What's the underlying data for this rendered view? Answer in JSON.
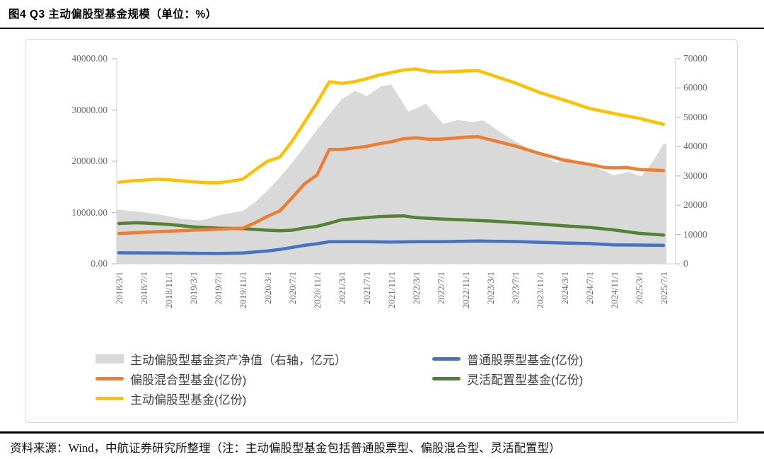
{
  "header": {
    "title": "图4  Q3 主动偏股型基金规模（单位：%）"
  },
  "footer": {
    "source": "资料来源：Wind，中航证券研究所整理（注：主动偏股型基金包括普通股票型、偏股混合型、灵活配置型）"
  },
  "chart_data": {
    "type": "combo-area-line",
    "title": "Q3 主动偏股型基金规模",
    "x_axis": {
      "labels": [
        "2018/3/1",
        "2018/7/1",
        "2018/11/1",
        "2019/3/1",
        "2019/7/1",
        "2019/11/1",
        "2020/3/1",
        "2020/7/1",
        "2020/11/1",
        "2021/3/1",
        "2021/7/1",
        "2021/11/1",
        "2022/3/1",
        "2022/7/1",
        "2022/11/1",
        "2023/3/1",
        "2023/7/1",
        "2023/11/1",
        "2024/3/1",
        "2024/7/1",
        "2024/11/1",
        "2025/3/1",
        "2025/7/1"
      ],
      "note": "series point x values are fractional indexes into labels (0 = 2018/3/1, 22 = 2025/7/1)"
    },
    "axes": {
      "left": {
        "min": 0,
        "max": 40000,
        "tick_values": [
          40000,
          30000,
          20000,
          10000,
          0
        ],
        "tick_labels": [
          "40000.00",
          "30000.00",
          "20000.00",
          "10000.00",
          "0.00"
        ]
      },
      "right": {
        "min": 0,
        "max": 70000,
        "tick_values": [
          70000,
          60000,
          50000,
          40000,
          30000,
          20000,
          10000,
          0
        ],
        "tick_labels": [
          "70000",
          "60000",
          "50000",
          "40000",
          "30000",
          "20000",
          "10000",
          "0"
        ]
      }
    },
    "grid": false,
    "series": [
      {
        "name": "主动偏股型基金资产净值（右轴，亿元）",
        "type": "area",
        "axis": "right",
        "color": "#d9d9d9",
        "points": [
          [
            0,
            18500
          ],
          [
            0.5,
            18000
          ],
          [
            1,
            17600
          ],
          [
            1.5,
            17000
          ],
          [
            2,
            16300
          ],
          [
            2.5,
            15400
          ],
          [
            3,
            15000
          ],
          [
            3.3,
            14800
          ],
          [
            3.6,
            15400
          ],
          [
            4,
            16500
          ],
          [
            4.5,
            17300
          ],
          [
            5,
            18000
          ],
          [
            5.5,
            21000
          ],
          [
            6,
            25000
          ],
          [
            6.5,
            29500
          ],
          [
            7,
            34500
          ],
          [
            7.5,
            40000
          ],
          [
            8,
            45700
          ],
          [
            8.5,
            51000
          ],
          [
            9,
            56200
          ],
          [
            9.55,
            59100
          ],
          [
            10,
            57200
          ],
          [
            10.6,
            60600
          ],
          [
            11,
            61200
          ],
          [
            11.35,
            56500
          ],
          [
            11.7,
            51900
          ],
          [
            12.4,
            54600
          ],
          [
            13.1,
            47800
          ],
          [
            13.7,
            49100
          ],
          [
            14.3,
            48300
          ],
          [
            14.7,
            49000
          ],
          [
            15,
            47400
          ],
          [
            15.4,
            45000
          ],
          [
            16,
            41800
          ],
          [
            16.7,
            38600
          ],
          [
            17.3,
            36200
          ],
          [
            17.7,
            34500
          ],
          [
            18.1,
            36200
          ],
          [
            18.6,
            34800
          ],
          [
            19,
            33600
          ],
          [
            19.5,
            32100
          ],
          [
            20,
            30200
          ],
          [
            20.6,
            31400
          ],
          [
            21.1,
            29800
          ],
          [
            21.6,
            35300
          ],
          [
            22,
            41000
          ]
        ]
      },
      {
        "name": "普通股票型基金(亿份)",
        "type": "line",
        "axis": "left",
        "color": "#4472c4",
        "points": [
          [
            0,
            2150
          ],
          [
            1,
            2120
          ],
          [
            2,
            2090
          ],
          [
            3,
            2060
          ],
          [
            4,
            2010
          ],
          [
            5,
            2100
          ],
          [
            5.5,
            2300
          ],
          [
            6,
            2500
          ],
          [
            6.5,
            2800
          ],
          [
            7,
            3200
          ],
          [
            7.5,
            3600
          ],
          [
            8,
            3900
          ],
          [
            8.5,
            4300
          ],
          [
            9,
            4300
          ],
          [
            10,
            4300
          ],
          [
            11,
            4250
          ],
          [
            12,
            4300
          ],
          [
            13,
            4300
          ],
          [
            14,
            4400
          ],
          [
            14.5,
            4450
          ],
          [
            15,
            4400
          ],
          [
            16,
            4350
          ],
          [
            17,
            4200
          ],
          [
            18,
            4050
          ],
          [
            19,
            3950
          ],
          [
            20,
            3700
          ],
          [
            21,
            3650
          ],
          [
            22,
            3600
          ]
        ]
      },
      {
        "name": "灵活配置型基金(亿份)",
        "type": "line",
        "axis": "left",
        "color": "#548235",
        "points": [
          [
            0,
            7860
          ],
          [
            0.7,
            8000
          ],
          [
            1,
            7950
          ],
          [
            2,
            7700
          ],
          [
            3,
            7200
          ],
          [
            4,
            6950
          ],
          [
            5,
            6850
          ],
          [
            5.5,
            6700
          ],
          [
            6,
            6550
          ],
          [
            6.5,
            6450
          ],
          [
            7,
            6550
          ],
          [
            7.5,
            7000
          ],
          [
            8,
            7300
          ],
          [
            8.5,
            7900
          ],
          [
            9,
            8600
          ],
          [
            9.5,
            8800
          ],
          [
            10,
            9000
          ],
          [
            10.5,
            9200
          ],
          [
            11,
            9300
          ],
          [
            11.5,
            9350
          ],
          [
            12,
            9000
          ],
          [
            13,
            8750
          ],
          [
            14,
            8550
          ],
          [
            15,
            8350
          ],
          [
            16,
            8050
          ],
          [
            17,
            7750
          ],
          [
            18,
            7400
          ],
          [
            19,
            7100
          ],
          [
            20,
            6600
          ],
          [
            21,
            5950
          ],
          [
            22,
            5600
          ]
        ]
      },
      {
        "name": "偏股混合型基金(亿份)",
        "type": "line",
        "axis": "left",
        "color": "#ed7d31",
        "points": [
          [
            0,
            5900
          ],
          [
            1,
            6150
          ],
          [
            2,
            6350
          ],
          [
            3,
            6550
          ],
          [
            4,
            6750
          ],
          [
            5,
            6950
          ],
          [
            5.5,
            8000
          ],
          [
            6,
            9250
          ],
          [
            6.5,
            10300
          ],
          [
            7,
            12900
          ],
          [
            7.5,
            15600
          ],
          [
            8,
            17300
          ],
          [
            8.5,
            22300
          ],
          [
            9,
            22300
          ],
          [
            9.5,
            22600
          ],
          [
            10,
            22900
          ],
          [
            10.5,
            23400
          ],
          [
            11,
            23800
          ],
          [
            11.5,
            24400
          ],
          [
            12,
            24600
          ],
          [
            12.5,
            24300
          ],
          [
            13,
            24300
          ],
          [
            13.5,
            24500
          ],
          [
            14,
            24700
          ],
          [
            14.5,
            24800
          ],
          [
            15,
            24200
          ],
          [
            16,
            23000
          ],
          [
            17,
            21500
          ],
          [
            18,
            20200
          ],
          [
            19,
            19400
          ],
          [
            19.6,
            18800
          ],
          [
            20,
            18700
          ],
          [
            20.5,
            18800
          ],
          [
            21,
            18400
          ],
          [
            22,
            18200
          ]
        ]
      },
      {
        "name": "主动偏股型基金(亿份)",
        "type": "line",
        "axis": "left",
        "color": "#ffc000",
        "points": [
          [
            0,
            15900
          ],
          [
            0.5,
            16200
          ],
          [
            1,
            16300
          ],
          [
            1.5,
            16500
          ],
          [
            2,
            16400
          ],
          [
            2.5,
            16200
          ],
          [
            3,
            16000
          ],
          [
            3.5,
            15800
          ],
          [
            4,
            15800
          ],
          [
            4.5,
            16100
          ],
          [
            5,
            16500
          ],
          [
            5.5,
            18300
          ],
          [
            6,
            20000
          ],
          [
            6.5,
            20800
          ],
          [
            7,
            23900
          ],
          [
            7.5,
            27600
          ],
          [
            8,
            31400
          ],
          [
            8.5,
            35500
          ],
          [
            9,
            35200
          ],
          [
            9.5,
            35500
          ],
          [
            10,
            36100
          ],
          [
            10.5,
            36800
          ],
          [
            11,
            37300
          ],
          [
            11.5,
            37800
          ],
          [
            12,
            38000
          ],
          [
            12.5,
            37500
          ],
          [
            13,
            37400
          ],
          [
            13.5,
            37500
          ],
          [
            14,
            37600
          ],
          [
            14.5,
            37700
          ],
          [
            15,
            36900
          ],
          [
            16,
            35300
          ],
          [
            17,
            33400
          ],
          [
            18,
            31900
          ],
          [
            19,
            30300
          ],
          [
            20,
            29300
          ],
          [
            21,
            28400
          ],
          [
            22,
            27200
          ]
        ]
      }
    ],
    "legend": {
      "position": "bottom",
      "items": [
        {
          "label": "主动偏股型基金资产净值（右轴，亿元）",
          "swatch": "area",
          "color": "#d9d9d9"
        },
        {
          "label": "普通股票型基金(亿份)",
          "swatch": "line",
          "color": "#4472c4"
        },
        {
          "label": "偏股混合型基金(亿份)",
          "swatch": "line",
          "color": "#ed7d31"
        },
        {
          "label": "灵活配置型基金(亿份)",
          "swatch": "line",
          "color": "#548235"
        },
        {
          "label": "主动偏股型基金(亿份)",
          "swatch": "line",
          "color": "#ffc000"
        }
      ]
    }
  }
}
